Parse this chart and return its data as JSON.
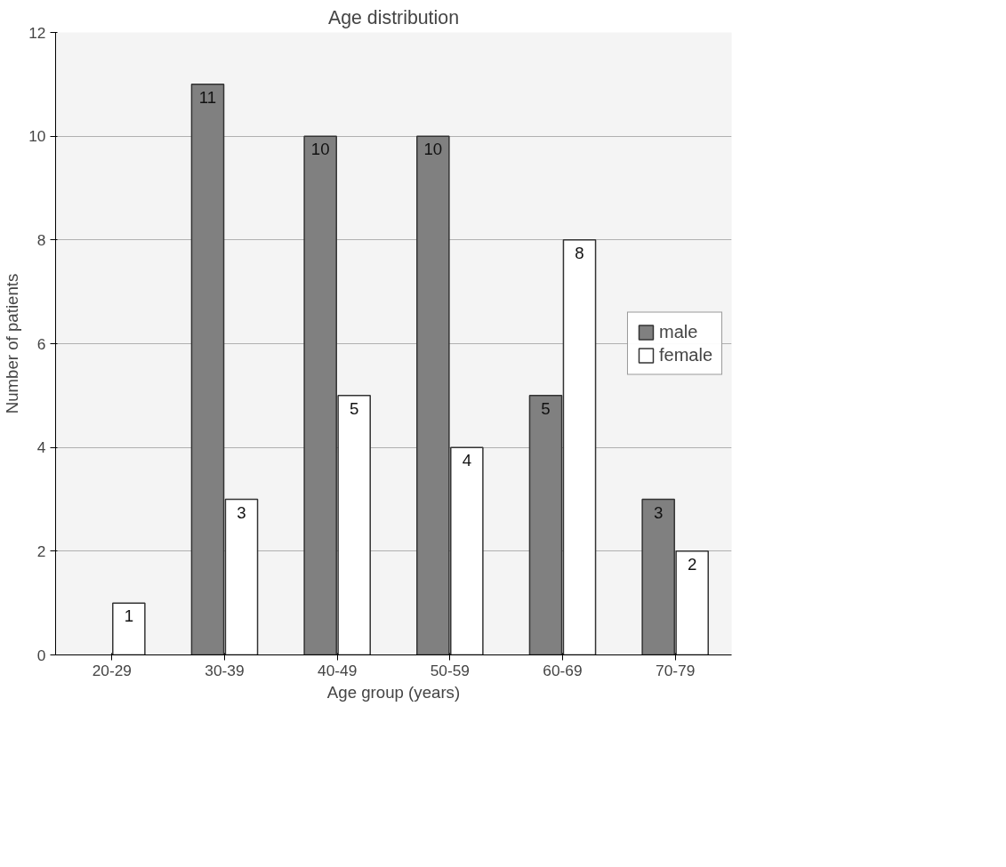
{
  "chart_data": {
    "type": "bar",
    "title": "Age distribution",
    "xlabel": "Age group (years)",
    "ylabel": "Number of patients",
    "categories": [
      "20-29",
      "30-39",
      "40-49",
      "50-59",
      "60-69",
      "70-79"
    ],
    "series": [
      {
        "name": "male",
        "color": "#808080",
        "values": [
          null,
          11,
          10,
          10,
          5,
          3
        ]
      },
      {
        "name": "female",
        "color": "#ffffff",
        "values": [
          1,
          3,
          5,
          4,
          8,
          2
        ]
      }
    ],
    "ylim": [
      0,
      12
    ],
    "yticks": [
      0,
      2,
      4,
      6,
      8,
      10,
      12
    ],
    "grid": "y",
    "legend": "right",
    "data_labels": true
  }
}
